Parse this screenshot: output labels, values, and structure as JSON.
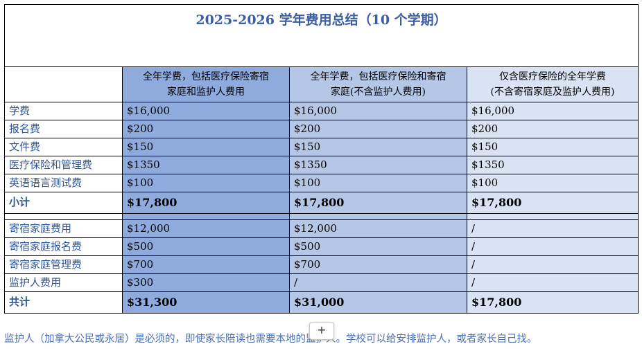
{
  "title": "2025-2026 学年费用总结（10 个学期）",
  "headers": {
    "col1_line1": "全年学费，包括医疗保险寄宿",
    "col1_line2": "家庭和监护人费用",
    "col2_line1": "全年学费，包括医疗保险和寄宿",
    "col2_line2": "家庭(不含监护人费用)",
    "col3_line1": "仅含医疗保险的全年学费",
    "col3_line2": "(不含寄宿家庭及监护人费用)"
  },
  "rows_a": [
    {
      "label": "学费",
      "c1": "$16,000",
      "c2": "$16,000",
      "c3": "$16,000"
    },
    {
      "label": "报名费",
      "c1": "$200",
      "c2": "$200",
      "c3": "$200"
    },
    {
      "label": "文件费",
      "c1": "$150",
      "c2": "$150",
      "c3": "$150"
    },
    {
      "label": "医疗保险和管理费",
      "c1": "$1350",
      "c2": "$1350",
      "c3": "$1350"
    },
    {
      "label": "英语语言测试费",
      "c1": "$100",
      "c2": "$100",
      "c3": "$100"
    }
  ],
  "subtotal": {
    "label": "小计",
    "c1": "$17,800",
    "c2": "$17,800",
    "c3": "$17,800"
  },
  "rows_b": [
    {
      "label": "寄宿家庭费用",
      "c1": "$12,000",
      "c2": "$12,000",
      "c3": "/"
    },
    {
      "label": "寄宿家庭报名费",
      "c1": "$500",
      "c2": "$500",
      "c3": "/"
    },
    {
      "label": "寄宿家庭管理费",
      "c1": "$700",
      "c2": "$700",
      "c3": "/"
    },
    {
      "label": "监护人费用",
      "c1": "$300",
      "c2": "/",
      "c3": "/"
    }
  ],
  "total": {
    "label": "共计",
    "c1": "$31,300",
    "c2": "$31,000",
    "c3": "$17,800"
  },
  "footnote": "监护人（加拿大公民或永居）是必须的，即使家长陪读也需要本地的监护人。学校可以给安排监护人，或者家长自己找。",
  "add_button": "+"
}
